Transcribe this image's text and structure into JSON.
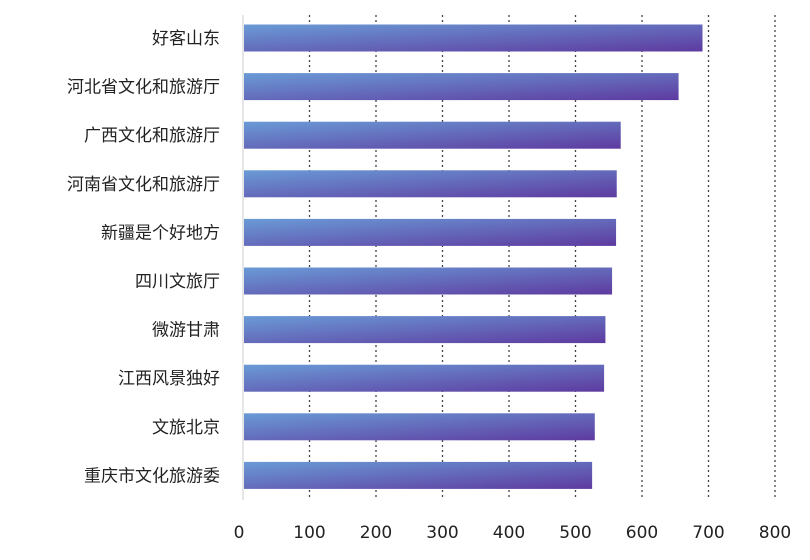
{
  "chart_data": {
    "type": "bar",
    "orientation": "horizontal",
    "title": "",
    "xlabel": "",
    "ylabel": "",
    "xlim": [
      0,
      800
    ],
    "x_ticks": [
      "0",
      "100",
      "200",
      "300",
      "400",
      "500",
      "600",
      "700",
      "800"
    ],
    "grid": "vertical dotted",
    "legend": "none",
    "categories": [
      "好客山东",
      "河北省文化和旅游厅",
      "广西文化和旅游厅",
      "河南省文化和旅游厅",
      "新疆是个好地方",
      "四川文旅厅",
      "微游甘肃",
      "江西风景独好",
      "文旅北京",
      "重庆市文化旅游委"
    ],
    "values": [
      691,
      655,
      568,
      562,
      561,
      555,
      545,
      543,
      529,
      525
    ],
    "colors": {
      "bar_gradient_start": "#6a9bd6",
      "bar_gradient_end": "#5e3aa0",
      "grid": "#444444",
      "axis": "#cccccc",
      "text": "#222222"
    }
  }
}
